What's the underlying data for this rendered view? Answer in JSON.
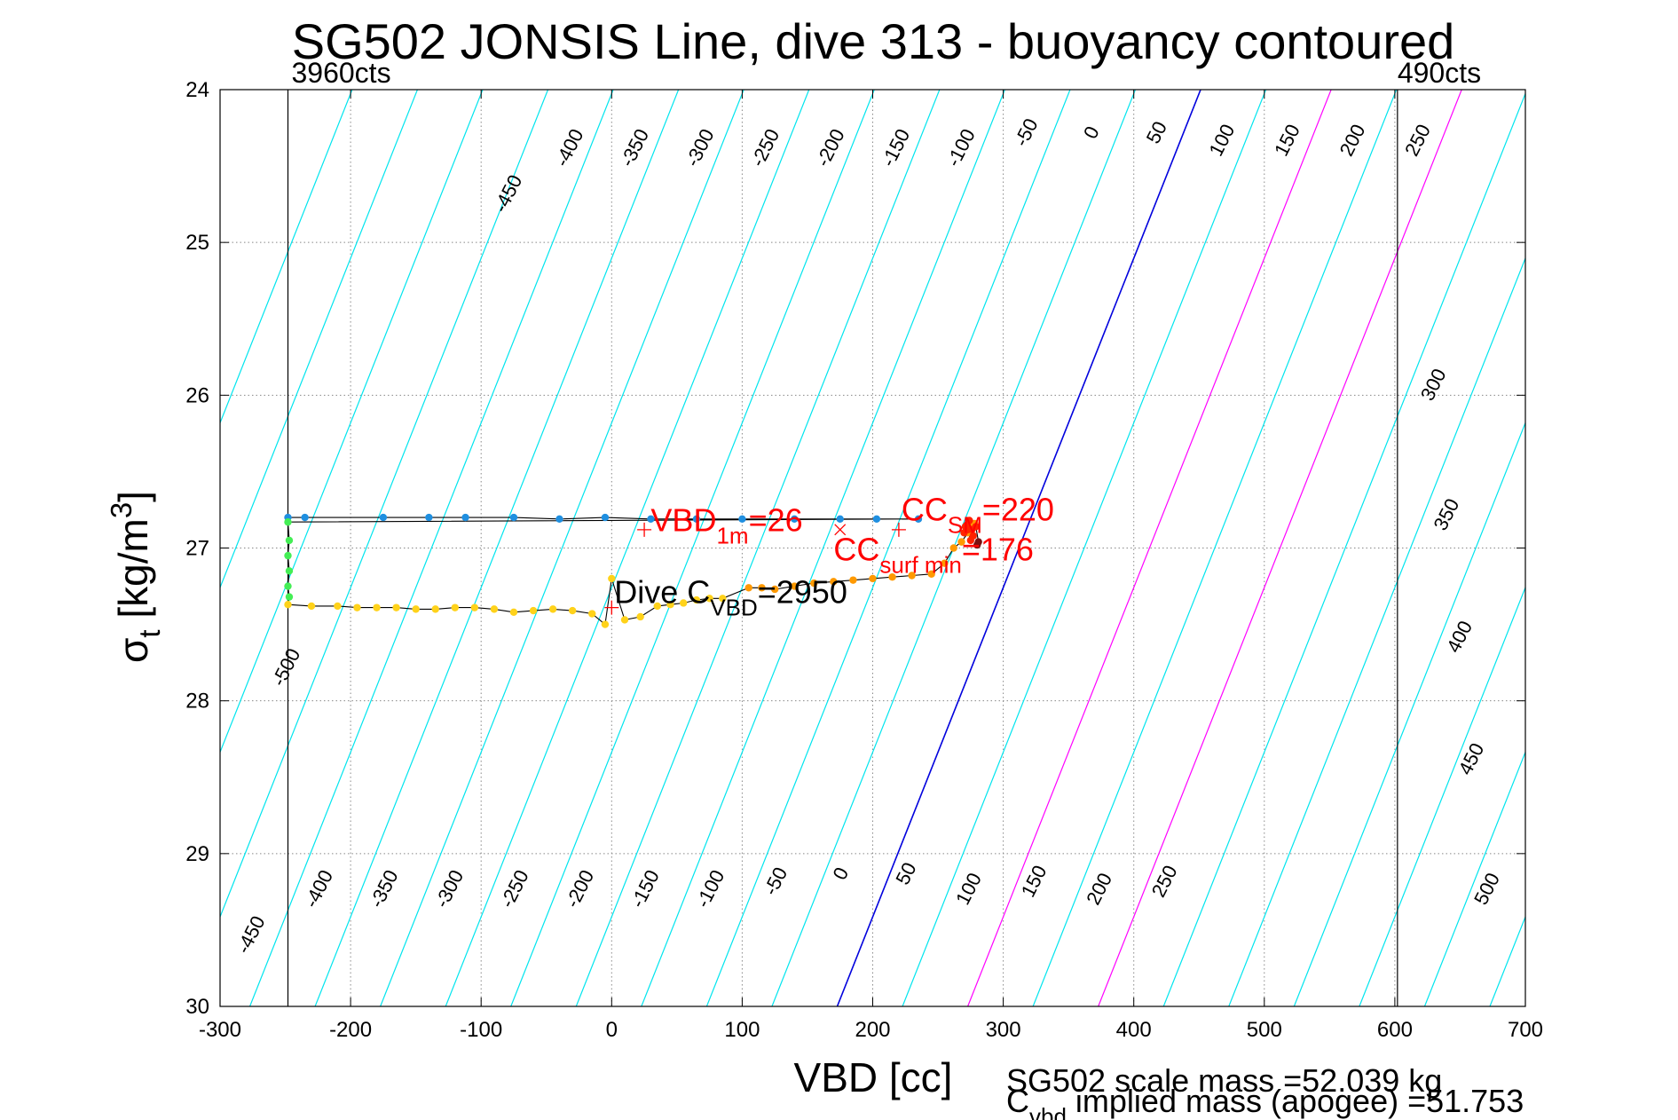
{
  "chart_data": {
    "type": "scatter",
    "title": "SG502 JONSIS Line, dive 313 - buoyancy contoured",
    "xlabel": "VBD [cc]",
    "ylabel": {
      "base": "σ",
      "sub": "t",
      "unit": " [kg/m",
      "sup": "3",
      "close": "]"
    },
    "xlim": [
      -300,
      700
    ],
    "ylim": [
      24,
      30
    ],
    "y_reversed": true,
    "xticks": [
      -300,
      -200,
      -100,
      0,
      100,
      200,
      300,
      400,
      500,
      600,
      700
    ],
    "yticks": [
      24,
      25,
      26,
      27,
      28,
      29,
      30
    ],
    "grid": true,
    "contour_slope_cc_per_kgm3": -46.4,
    "contours_top": [
      -450,
      -400,
      -350,
      -300,
      -250,
      -200,
      -150,
      -100,
      -50,
      0,
      50,
      100,
      150,
      200,
      250,
      300,
      350,
      400,
      450
    ],
    "contours_bottom": [
      -450,
      -400,
      -350,
      -300,
      -250,
      -200,
      -150,
      -100,
      -50,
      0,
      50,
      100,
      150,
      200,
      250,
      500
    ],
    "contour_labels": [
      {
        "text": "-450",
        "x": -75,
        "y": 24.7
      },
      {
        "text": "-400",
        "x": -28,
        "y": 24.4
      },
      {
        "text": "-350",
        "x": 22,
        "y": 24.4
      },
      {
        "text": "-300",
        "x": 72,
        "y": 24.4
      },
      {
        "text": "-250",
        "x": 122,
        "y": 24.4
      },
      {
        "text": "-200",
        "x": 172,
        "y": 24.4
      },
      {
        "text": "-150",
        "x": 222,
        "y": 24.4
      },
      {
        "text": "-100",
        "x": 272,
        "y": 24.4
      },
      {
        "text": "-50",
        "x": 322,
        "y": 24.3
      },
      {
        "text": "0",
        "x": 372,
        "y": 24.3
      },
      {
        "text": "50",
        "x": 422,
        "y": 24.3
      },
      {
        "text": "100",
        "x": 472,
        "y": 24.35
      },
      {
        "text": "150",
        "x": 522,
        "y": 24.35
      },
      {
        "text": "200",
        "x": 572,
        "y": 24.35
      },
      {
        "text": "250",
        "x": 622,
        "y": 24.35
      },
      {
        "text": "300",
        "x": 634,
        "y": 25.95
      },
      {
        "text": "350",
        "x": 644,
        "y": 26.8
      },
      {
        "text": "400",
        "x": 654,
        "y": 27.6
      },
      {
        "text": "450",
        "x": 663,
        "y": 28.4
      },
      {
        "text": "500",
        "x": 675,
        "y": 29.25
      },
      {
        "text": "-500",
        "x": -245,
        "y": 27.8
      },
      {
        "text": "-450",
        "x": -272,
        "y": 29.55
      },
      {
        "text": "-400",
        "x": -220,
        "y": 29.25
      },
      {
        "text": "-350",
        "x": -170,
        "y": 29.25
      },
      {
        "text": "-300",
        "x": -120,
        "y": 29.25
      },
      {
        "text": "-250",
        "x": -70,
        "y": 29.25
      },
      {
        "text": "-200",
        "x": -20,
        "y": 29.25
      },
      {
        "text": "-150",
        "x": 30,
        "y": 29.25
      },
      {
        "text": "-100",
        "x": 80,
        "y": 29.25
      },
      {
        "text": "-50",
        "x": 130,
        "y": 29.2
      },
      {
        "text": "0",
        "x": 180,
        "y": 29.15
      },
      {
        "text": "50",
        "x": 230,
        "y": 29.15
      },
      {
        "text": "100",
        "x": 278,
        "y": 29.25
      },
      {
        "text": "150",
        "x": 328,
        "y": 29.2
      },
      {
        "text": "200",
        "x": 378,
        "y": 29.25
      },
      {
        "text": "250",
        "x": 428,
        "y": 29.2
      }
    ],
    "count_lines": [
      {
        "x": -248,
        "label": "3960cts"
      },
      {
        "x": 602,
        "label": "490cts"
      }
    ],
    "series": [
      {
        "name": "",
        "color": "#1f8fe0",
        "points": [
          [
            -248,
            26.8
          ],
          [
            -235,
            26.8
          ],
          [
            -175,
            26.8
          ],
          [
            -140,
            26.8
          ],
          [
            -112,
            26.8
          ],
          [
            -75,
            26.8
          ],
          [
            -40,
            26.81
          ],
          [
            -5,
            26.8
          ],
          [
            30,
            26.81
          ],
          [
            65,
            26.81
          ],
          [
            100,
            26.81
          ],
          [
            140,
            26.81
          ],
          [
            175,
            26.81
          ],
          [
            203,
            26.81
          ],
          [
            235,
            26.81
          ]
        ]
      },
      {
        "name": "",
        "color": "#44ee55",
        "points": [
          [
            -248,
            26.83
          ],
          [
            -247,
            26.95
          ],
          [
            -248,
            27.05
          ],
          [
            -247,
            27.15
          ],
          [
            -248,
            27.25
          ],
          [
            -247,
            27.32
          ]
        ]
      },
      {
        "name": "",
        "color": "#ffd21a",
        "points": [
          [
            -248,
            27.37
          ],
          [
            -230,
            27.38
          ],
          [
            -210,
            27.38
          ],
          [
            -195,
            27.39
          ],
          [
            -180,
            27.39
          ],
          [
            -165,
            27.39
          ],
          [
            -150,
            27.4
          ],
          [
            -135,
            27.4
          ],
          [
            -120,
            27.39
          ],
          [
            -105,
            27.39
          ],
          [
            -90,
            27.4
          ],
          [
            -75,
            27.42
          ],
          [
            -60,
            27.41
          ],
          [
            -45,
            27.4
          ],
          [
            -30,
            27.41
          ],
          [
            -15,
            27.43
          ],
          [
            -5,
            27.5
          ],
          [
            0,
            27.2
          ],
          [
            10,
            27.47
          ],
          [
            22,
            27.45
          ],
          [
            35,
            27.38
          ],
          [
            45,
            27.37
          ],
          [
            55,
            27.36
          ],
          [
            65,
            27.34
          ],
          [
            75,
            27.33
          ],
          [
            85,
            27.33
          ]
        ]
      },
      {
        "name": "",
        "color": "#ff9900",
        "points": [
          [
            105,
            27.26
          ],
          [
            115,
            27.26
          ],
          [
            125,
            27.27
          ],
          [
            140,
            27.25
          ],
          [
            155,
            27.23
          ],
          [
            170,
            27.22
          ],
          [
            185,
            27.21
          ],
          [
            200,
            27.2
          ],
          [
            215,
            27.19
          ],
          [
            230,
            27.18
          ],
          [
            245,
            27.17
          ],
          [
            255,
            27.1
          ],
          [
            262,
            27.0
          ],
          [
            268,
            26.96
          ],
          [
            273,
            26.9
          ],
          [
            276,
            26.86
          ],
          [
            278,
            26.84
          ]
        ]
      },
      {
        "name": "",
        "color": "#ff2200",
        "points": [
          [
            270,
            26.9
          ],
          [
            272,
            26.85
          ],
          [
            274,
            26.82
          ],
          [
            276,
            26.88
          ],
          [
            277,
            26.92
          ],
          [
            275,
            26.95
          ],
          [
            273,
            26.88
          ],
          [
            271,
            26.86
          ],
          [
            279,
            26.86
          ]
        ]
      },
      {
        "name": "",
        "color": "#7a1010",
        "points": [
          [
            281,
            26.96
          ],
          [
            280,
            26.98
          ]
        ]
      }
    ],
    "trace_color": "#000000",
    "markers": [
      {
        "type": "plus",
        "x": 25,
        "y": 26.88
      },
      {
        "type": "plus",
        "x": 220,
        "y": 26.88
      },
      {
        "type": "cross",
        "x": 175,
        "y": 26.88
      },
      {
        "type": "plus",
        "x": 0,
        "y": 27.39
      }
    ],
    "annotations": [
      {
        "id": "vbd1m",
        "color": "#ff0000",
        "x": 30,
        "y": 26.89,
        "base": "VBD",
        "sub": "1m",
        "rest": "=26"
      },
      {
        "id": "ccsm",
        "color": "#ff0000",
        "x": 222,
        "y": 26.82,
        "base": "CC",
        "sub": "SM",
        "rest": "=220"
      },
      {
        "id": "ccsurf",
        "color": "#ff0000",
        "x": 170,
        "y": 27.08,
        "base": "CC",
        "sub": "surf min",
        "rest": "=176"
      },
      {
        "id": "divec",
        "color": "#000000",
        "x": 2,
        "y": 27.36,
        "base": "Dive C",
        "sub": "VBD",
        "rest": "=2950"
      }
    ],
    "footer_line1": "SG502 scale mass =52.039 kg",
    "footer_line2": {
      "base": "C",
      "sub": "vbd",
      "rest": " implied mass (apogee) =51.753"
    }
  }
}
